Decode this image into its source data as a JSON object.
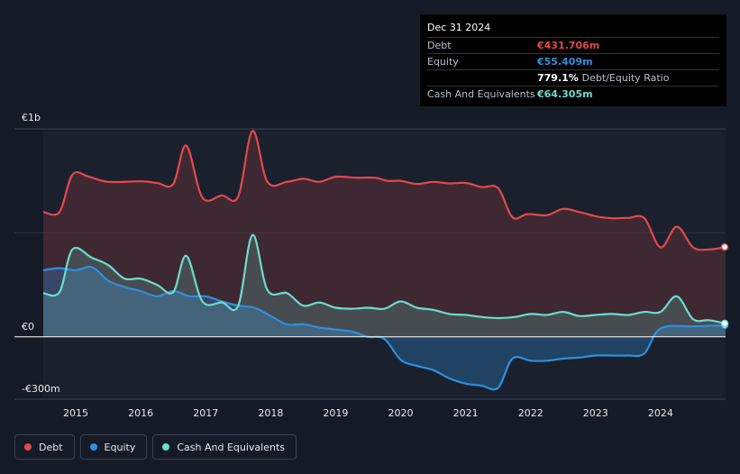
{
  "tooltip": {
    "date": "Dec 31 2024",
    "debt_label": "Debt",
    "debt_value": "€431.706m",
    "equity_label": "Equity",
    "equity_value": "€55.409m",
    "ratio_value": "779.1%",
    "ratio_label": "Debt/Equity Ratio",
    "cash_label": "Cash And Equivalents",
    "cash_value": "€64.305m"
  },
  "legend": {
    "debt": "Debt",
    "equity": "Equity",
    "cash": "Cash And Equivalents"
  },
  "colors": {
    "debt": "#e4484d",
    "equity": "#2f8fe0",
    "cash": "#6cdccb",
    "background": "#151b26"
  },
  "chart_data": {
    "type": "area",
    "ylim": [
      -300,
      1000
    ],
    "yunit": "€m",
    "y_tick_labels": [
      {
        "value": 1000,
        "label": "€1b"
      },
      {
        "value": 0,
        "label": "€0"
      },
      {
        "value": -300,
        "label": "-€300m"
      }
    ],
    "xlim": [
      2014.5,
      2025.0
    ],
    "x_ticks": [
      2015,
      2016,
      2017,
      2018,
      2019,
      2020,
      2021,
      2022,
      2023,
      2024
    ],
    "x_tick_labels": [
      "2015",
      "2016",
      "2017",
      "2018",
      "2019",
      "2020",
      "2021",
      "2022",
      "2023",
      "2024"
    ],
    "grid": true,
    "legend_position": "bottom-left",
    "series": [
      {
        "name": "Debt",
        "points": [
          [
            2014.5,
            600
          ],
          [
            2014.75,
            600
          ],
          [
            2014.95,
            780
          ],
          [
            2015.2,
            770
          ],
          [
            2015.5,
            745
          ],
          [
            2016.0,
            748
          ],
          [
            2016.25,
            740
          ],
          [
            2016.5,
            735
          ],
          [
            2016.7,
            920
          ],
          [
            2016.95,
            670
          ],
          [
            2017.25,
            680
          ],
          [
            2017.5,
            675
          ],
          [
            2017.72,
            990
          ],
          [
            2017.95,
            745
          ],
          [
            2018.25,
            745
          ],
          [
            2018.5,
            760
          ],
          [
            2018.75,
            745
          ],
          [
            2019.0,
            770
          ],
          [
            2019.3,
            765
          ],
          [
            2019.6,
            765
          ],
          [
            2019.8,
            750
          ],
          [
            2020.0,
            750
          ],
          [
            2020.25,
            735
          ],
          [
            2020.5,
            745
          ],
          [
            2020.75,
            738
          ],
          [
            2021.0,
            740
          ],
          [
            2021.25,
            720
          ],
          [
            2021.5,
            715
          ],
          [
            2021.72,
            575
          ],
          [
            2021.95,
            590
          ],
          [
            2022.25,
            585
          ],
          [
            2022.5,
            615
          ],
          [
            2022.75,
            600
          ],
          [
            2023.0,
            580
          ],
          [
            2023.25,
            570
          ],
          [
            2023.5,
            572
          ],
          [
            2023.75,
            570
          ],
          [
            2024.0,
            430
          ],
          [
            2024.25,
            530
          ],
          [
            2024.5,
            430
          ],
          [
            2024.75,
            420
          ],
          [
            2025.0,
            432
          ]
        ]
      },
      {
        "name": "Equity",
        "points": [
          [
            2014.5,
            320
          ],
          [
            2014.75,
            330
          ],
          [
            2015.0,
            320
          ],
          [
            2015.25,
            335
          ],
          [
            2015.5,
            270
          ],
          [
            2015.75,
            240
          ],
          [
            2016.0,
            220
          ],
          [
            2016.25,
            195
          ],
          [
            2016.5,
            220
          ],
          [
            2016.75,
            195
          ],
          [
            2017.0,
            195
          ],
          [
            2017.25,
            170
          ],
          [
            2017.5,
            150
          ],
          [
            2017.75,
            140
          ],
          [
            2018.0,
            100
          ],
          [
            2018.25,
            60
          ],
          [
            2018.5,
            60
          ],
          [
            2018.75,
            45
          ],
          [
            2019.0,
            35
          ],
          [
            2019.25,
            25
          ],
          [
            2019.5,
            0
          ],
          [
            2019.75,
            -10
          ],
          [
            2020.0,
            -110
          ],
          [
            2020.25,
            -140
          ],
          [
            2020.5,
            -160
          ],
          [
            2020.75,
            -200
          ],
          [
            2021.0,
            -225
          ],
          [
            2021.25,
            -235
          ],
          [
            2021.5,
            -245
          ],
          [
            2021.72,
            -105
          ],
          [
            2022.0,
            -115
          ],
          [
            2022.25,
            -115
          ],
          [
            2022.5,
            -105
          ],
          [
            2022.75,
            -100
          ],
          [
            2023.0,
            -90
          ],
          [
            2023.25,
            -90
          ],
          [
            2023.5,
            -90
          ],
          [
            2023.75,
            -80
          ],
          [
            2024.0,
            40
          ],
          [
            2024.5,
            50
          ],
          [
            2025.0,
            55
          ]
        ]
      },
      {
        "name": "Cash And Equivalents",
        "points": [
          [
            2014.5,
            210
          ],
          [
            2014.75,
            215
          ],
          [
            2014.95,
            420
          ],
          [
            2015.25,
            380
          ],
          [
            2015.5,
            345
          ],
          [
            2015.75,
            280
          ],
          [
            2016.0,
            280
          ],
          [
            2016.25,
            250
          ],
          [
            2016.5,
            215
          ],
          [
            2016.7,
            390
          ],
          [
            2016.95,
            170
          ],
          [
            2017.25,
            165
          ],
          [
            2017.5,
            150
          ],
          [
            2017.72,
            490
          ],
          [
            2017.95,
            225
          ],
          [
            2018.25,
            210
          ],
          [
            2018.5,
            150
          ],
          [
            2018.75,
            165
          ],
          [
            2019.0,
            140
          ],
          [
            2019.25,
            135
          ],
          [
            2019.5,
            140
          ],
          [
            2019.75,
            135
          ],
          [
            2020.0,
            170
          ],
          [
            2020.25,
            140
          ],
          [
            2020.5,
            130
          ],
          [
            2020.75,
            110
          ],
          [
            2021.0,
            105
          ],
          [
            2021.25,
            95
          ],
          [
            2021.5,
            90
          ],
          [
            2021.75,
            95
          ],
          [
            2022.0,
            110
          ],
          [
            2022.25,
            105
          ],
          [
            2022.5,
            120
          ],
          [
            2022.75,
            100
          ],
          [
            2023.0,
            105
          ],
          [
            2023.25,
            110
          ],
          [
            2023.5,
            105
          ],
          [
            2023.75,
            120
          ],
          [
            2024.0,
            120
          ],
          [
            2024.25,
            195
          ],
          [
            2024.5,
            85
          ],
          [
            2024.75,
            80
          ],
          [
            2025.0,
            64
          ]
        ]
      }
    ]
  }
}
